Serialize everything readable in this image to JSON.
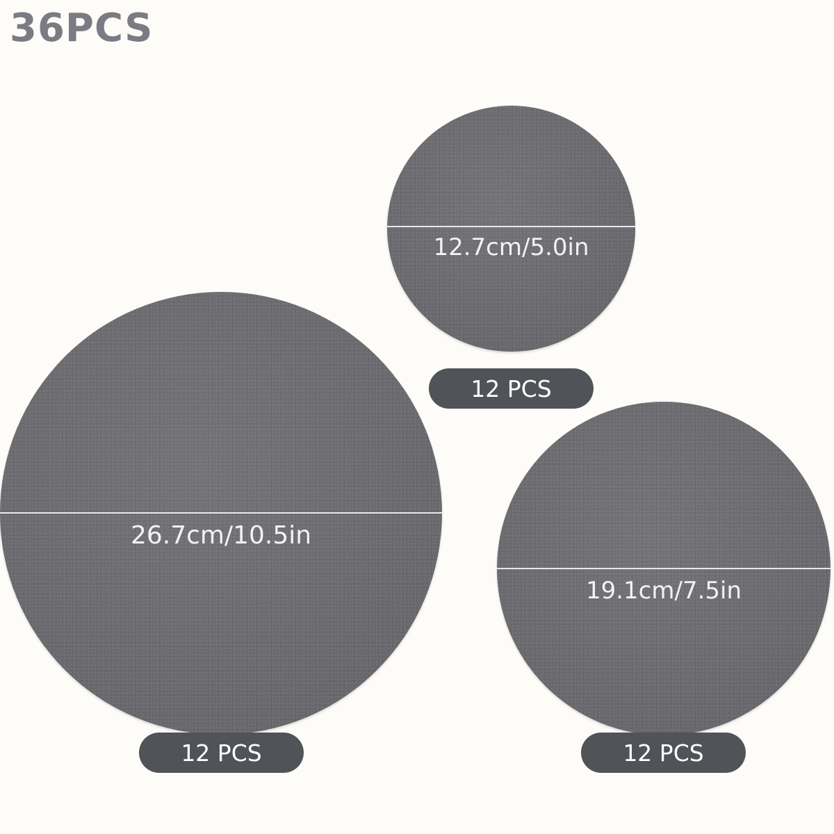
{
  "title": "36PCS",
  "colors": {
    "felt": "#6b6b70",
    "pill": "#505358",
    "title": "#7c7b84",
    "background": "#fdfcf8"
  },
  "items": [
    {
      "size": "12.7cm/5.0in",
      "quantity": "12 PCS"
    },
    {
      "size": "26.7cm/10.5in",
      "quantity": "12 PCS"
    },
    {
      "size": "19.1cm/7.5in",
      "quantity": "12 PCS"
    }
  ]
}
